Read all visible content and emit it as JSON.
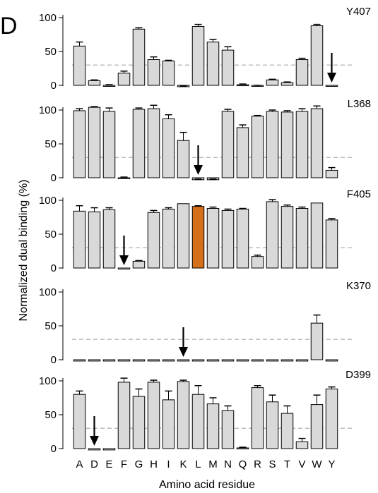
{
  "figure_letter": "D",
  "chart_data": {
    "type": "bar",
    "xlabel": "Amino acid residue",
    "ylabel": "Normalized dual binding (%)",
    "ylim": [
      0,
      100
    ],
    "yticks": [
      0,
      50,
      100
    ],
    "threshold": 30,
    "categories": [
      "A",
      "D",
      "E",
      "F",
      "G",
      "H",
      "I",
      "K",
      "L",
      "M",
      "N",
      "Q",
      "R",
      "S",
      "T",
      "V",
      "W",
      "Y"
    ],
    "colors": {
      "bar": "#d9d9d9",
      "highlight": "#d4701c",
      "edge": "#000000",
      "threshold_line": "#a6a6a6"
    },
    "panels": [
      {
        "name": "Y407",
        "values": [
          58,
          7,
          0,
          18,
          83,
          38,
          36,
          -2,
          87,
          64,
          52,
          1,
          -1,
          8,
          4,
          38,
          88,
          0
        ],
        "errors": [
          6,
          1,
          1,
          3,
          2,
          4,
          1,
          1,
          3,
          4,
          5,
          1,
          1,
          1,
          1,
          2,
          2,
          0
        ],
        "arrow_at": "Y",
        "highlight": null
      },
      {
        "name": "L368",
        "values": [
          99,
          104,
          98,
          0,
          101,
          102,
          87,
          55,
          -3,
          -3,
          98,
          74,
          91,
          98,
          97,
          98,
          102,
          11
        ],
        "errors": [
          3,
          1,
          5,
          1,
          2,
          5,
          6,
          12,
          1,
          1,
          3,
          4,
          1,
          2,
          2,
          4,
          4,
          4
        ],
        "arrow_at": "L",
        "highlight": null
      },
      {
        "name": "F405",
        "values": [
          84,
          83,
          86,
          0,
          10,
          82,
          87,
          95,
          91,
          88,
          85,
          87,
          17,
          98,
          91,
          88,
          96,
          71
        ],
        "errors": [
          8,
          6,
          3,
          0,
          1,
          3,
          2,
          0,
          1,
          2,
          2,
          1,
          2,
          3,
          2,
          2,
          0,
          2
        ],
        "arrow_at": "F",
        "highlight": "L"
      },
      {
        "name": "K370",
        "values": [
          -2,
          -2,
          -2,
          -2,
          -2,
          -2,
          -2,
          -2,
          -2,
          -2,
          -2,
          -2,
          -2,
          -2,
          -2,
          -2,
          54,
          -2
        ],
        "errors": [
          0,
          0,
          0,
          0,
          0,
          0,
          0,
          0,
          0,
          0,
          0,
          0,
          0,
          0,
          0,
          0,
          12,
          0
        ],
        "arrow_at": "K",
        "highlight": null
      },
      {
        "name": "D399",
        "values": [
          80,
          -2,
          -2,
          98,
          77,
          98,
          72,
          99,
          80,
          66,
          56,
          1,
          90,
          69,
          52,
          10,
          65,
          88
        ],
        "errors": [
          5,
          0,
          0,
          6,
          11,
          3,
          13,
          2,
          13,
          9,
          7,
          1,
          3,
          10,
          11,
          5,
          14,
          3
        ],
        "arrow_at": "D",
        "highlight": null
      }
    ]
  }
}
